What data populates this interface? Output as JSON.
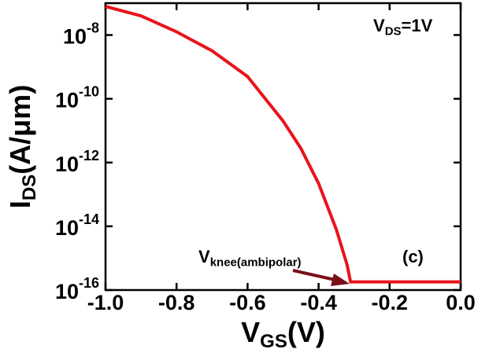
{
  "chart_data": {
    "type": "line",
    "x_label": {
      "main": "V",
      "sub": "GS",
      "rest": "(V)"
    },
    "y_label": {
      "main": "I",
      "sub": "DS",
      "rest": "(A/μm)"
    },
    "annotations": {
      "condition": {
        "main": "V",
        "sub": "DS",
        "rest": "=1V"
      },
      "knee": {
        "main": "V",
        "sub": "knee(ambipolar)"
      },
      "panel": "(c)"
    },
    "x": [
      -1.0,
      -0.9,
      -0.8,
      -0.7,
      -0.6,
      -0.5,
      -0.45,
      -0.4,
      -0.35,
      -0.32,
      -0.31,
      -0.2,
      -0.1,
      0.0
    ],
    "series": [
      {
        "name": "IDS",
        "color": "#e8141b",
        "values": [
          7.9e-08,
          4e-08,
          1.26e-08,
          3.2e-09,
          5e-10,
          2e-11,
          2.8e-12,
          2.2e-13,
          7.9e-15,
          6.3e-16,
          1.8e-16,
          1.8e-16,
          1.8e-16,
          1.8e-16
        ]
      }
    ],
    "xlim": [
      -1.0,
      0.0
    ],
    "xticks": [
      {
        "value": -1.0,
        "label": "-1.0"
      },
      -0.8,
      -0.6,
      -0.4,
      -0.2,
      {
        "value": 0.0,
        "label": "0.0"
      }
    ],
    "ylim": [
      1e-16,
      1e-07
    ],
    "yticks": [
      {
        "value": 1e-16,
        "label": "10-16"
      },
      {
        "value": 1e-14,
        "label": "10-14"
      },
      {
        "value": 1e-12,
        "label": "10-12"
      },
      {
        "value": 1e-10,
        "label": "10-10"
      },
      {
        "value": 1e-08,
        "label": "10-8"
      }
    ],
    "log_y": true,
    "grid": false
  }
}
